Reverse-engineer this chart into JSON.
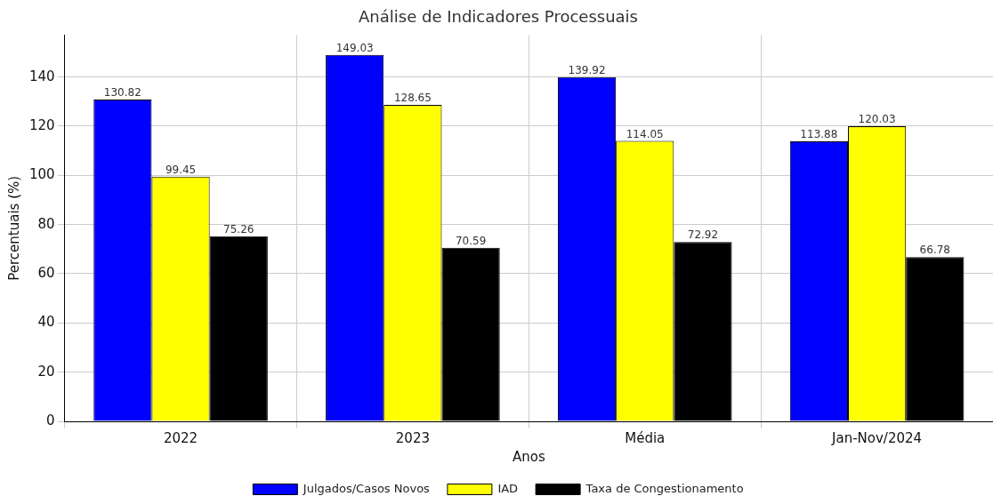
{
  "chart_data": {
    "type": "bar",
    "title": "Análise de Indicadores Processuais",
    "xlabel": "Anos",
    "ylabel": "Percentuais (%)",
    "categories": [
      "2022",
      "2023",
      "Média",
      "Jan-Nov/2024"
    ],
    "series": [
      {
        "name": "Julgados/Casos Novos",
        "color": "#0000ff",
        "values": [
          130.82,
          149.03,
          139.92,
          113.88
        ]
      },
      {
        "name": "IAD",
        "color": "#ffff00",
        "values": [
          99.45,
          128.65,
          114.05,
          120.03
        ]
      },
      {
        "name": "Taxa de Congestionamento",
        "color": "#000000",
        "values": [
          75.26,
          70.59,
          72.92,
          66.78
        ]
      }
    ],
    "ylim": [
      0,
      157
    ],
    "yticks": [
      0,
      20,
      40,
      60,
      80,
      100,
      120,
      140
    ],
    "grid": true,
    "legend": "bottom",
    "data_labels": true
  }
}
